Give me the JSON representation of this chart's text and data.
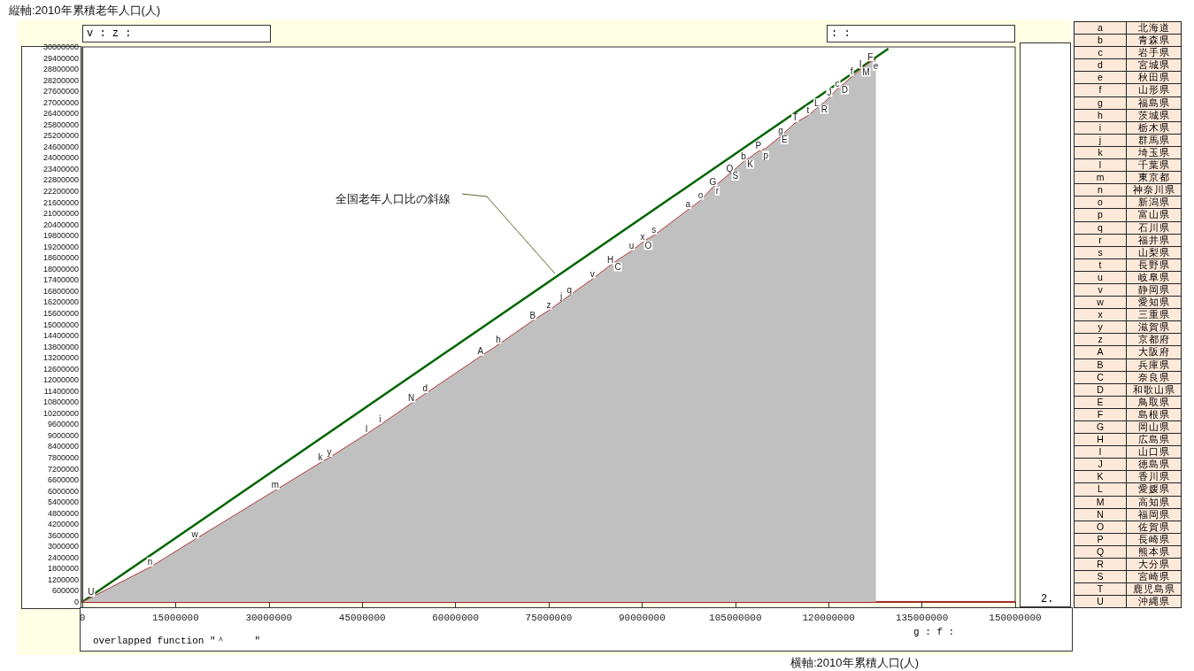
{
  "chart_data": {
    "type": "area",
    "xlabel": "横軸:2010年累積人口(人)",
    "ylabel": "縦軸:2010年累積老年人口(人)",
    "xlim": [
      0,
      150000000
    ],
    "ylim": [
      0,
      30000000
    ],
    "xticks": [
      0,
      15000000,
      30000000,
      45000000,
      60000000,
      75000000,
      90000000,
      105000000,
      120000000,
      135000000,
      150000000
    ],
    "yticks": [
      0,
      600000,
      1200000,
      1800000,
      2400000,
      3000000,
      3600000,
      4200000,
      4800000,
      5400000,
      6000000,
      6600000,
      7200000,
      7800000,
      8400000,
      9000000,
      9600000,
      10200000,
      10800000,
      11400000,
      12000000,
      12600000,
      13200000,
      13800000,
      14400000,
      15000000,
      15600000,
      16200000,
      16800000,
      17400000,
      18000000,
      18600000,
      19200000,
      19800000,
      20400000,
      21000000,
      21600000,
      22200000,
      22800000,
      23400000,
      24000000,
      24600000,
      25200000,
      25800000,
      26400000,
      27000000,
      27600000,
      28200000,
      28800000,
      29400000,
      30000000
    ],
    "grid": false,
    "marker": "none",
    "series": [
      {
        "color": "#c0c0c0",
        "x": [
          0,
          1400000,
          10900000,
          18100000,
          31000000,
          38300000,
          39700000,
          45700000,
          47900000,
          52900000,
          55100000,
          64000000,
          66900000,
          72400000,
          75000000,
          77000000,
          78300000,
          82000000,
          84900000,
          86100000,
          88300000,
          90100000,
          91000000,
          91900000,
          97400000,
          99400000,
          101400000,
          102100000,
          104100000,
          105000000,
          106300000,
          107400000,
          108700000,
          109900000,
          112300000,
          112900000,
          114600000,
          116700000,
          118100000,
          119300000,
          120100000,
          121400000,
          122600000,
          123700000,
          125100000,
          126000000,
          126700000,
          127600000
        ],
        "values": [
          0,
          240000,
          1880000,
          3380000,
          6030000,
          7530000,
          7800000,
          9080000,
          9570000,
          10740000,
          11250000,
          13270000,
          13910000,
          15200000,
          15760000,
          16240000,
          16560000,
          17450000,
          18200000,
          18490000,
          18970000,
          19450000,
          19650000,
          19810000,
          21200000,
          21700000,
          22430000,
          22590000,
          23150000,
          23400000,
          23800000,
          24040000,
          24360000,
          24520000,
          25170000,
          25370000,
          25890000,
          26290000,
          26690000,
          27010000,
          27260000,
          27740000,
          28060000,
          28380000,
          28780000,
          29020000,
          29180000,
          29340000
        ],
        "value_labels": [
          null,
          "U",
          "n",
          "w",
          "m",
          "k",
          "y",
          "l",
          "i",
          "N",
          "d",
          "A",
          "h",
          "B",
          "z",
          "j",
          "q",
          "v",
          "H",
          "C",
          "u",
          "x",
          "O",
          "s",
          "a",
          "o",
          "G",
          "r",
          "Q",
          "S",
          "b",
          "K",
          "P",
          "p",
          "g",
          "E",
          "T",
          "t",
          "L",
          "R",
          "J",
          "c",
          "D",
          "f",
          "I",
          "M",
          "F",
          "e"
        ]
      },
      {
        "type": "line",
        "color": "#006400",
        "x": [
          0,
          129600000
        ],
        "values": [
          0,
          29900000
        ]
      }
    ],
    "annotations": [
      {
        "text": "全国老年人口比の斜線",
        "x": 76000000,
        "y": 17750000
      },
      "v : z :",
      ": :",
      "overlapped function ″＾　　　″",
      "g : f :",
      "2.",
      "a 北海道",
      "b 青森県",
      "c 岩手県",
      "d 宮城県",
      "e 秋田県",
      "f 山形県",
      "g 福島県",
      "h 茨城県",
      "i 栃木県",
      "j 群馬県",
      "k 埼玉県",
      "l 千葉県",
      "m 東京都",
      "n 神奈川県",
      "o 新潟県",
      "p 富山県",
      "q 石川県",
      "r 福井県",
      "s 山梨県",
      "t 長野県",
      "u 岐阜県",
      "v 静岡県",
      "w 愛知県",
      "x 三重県",
      "y 滋賀県",
      "z 京都府",
      "A 大阪府",
      "B 兵庫県",
      "C 奈良県",
      "D 和歌山県",
      "E 鳥取県",
      "F 島根県",
      "G 岡山県",
      "H 広島県",
      "I 山口県",
      "J 徳島県",
      "K 香川県",
      "L 愛媛県",
      "M 高知県",
      "N 福岡県",
      "O 佐賀県",
      "P 長崎県",
      "Q 熊本県",
      "R 大分県",
      "S 宮崎県",
      "T 鹿児島県",
      "U 沖縄県"
    ]
  }
}
